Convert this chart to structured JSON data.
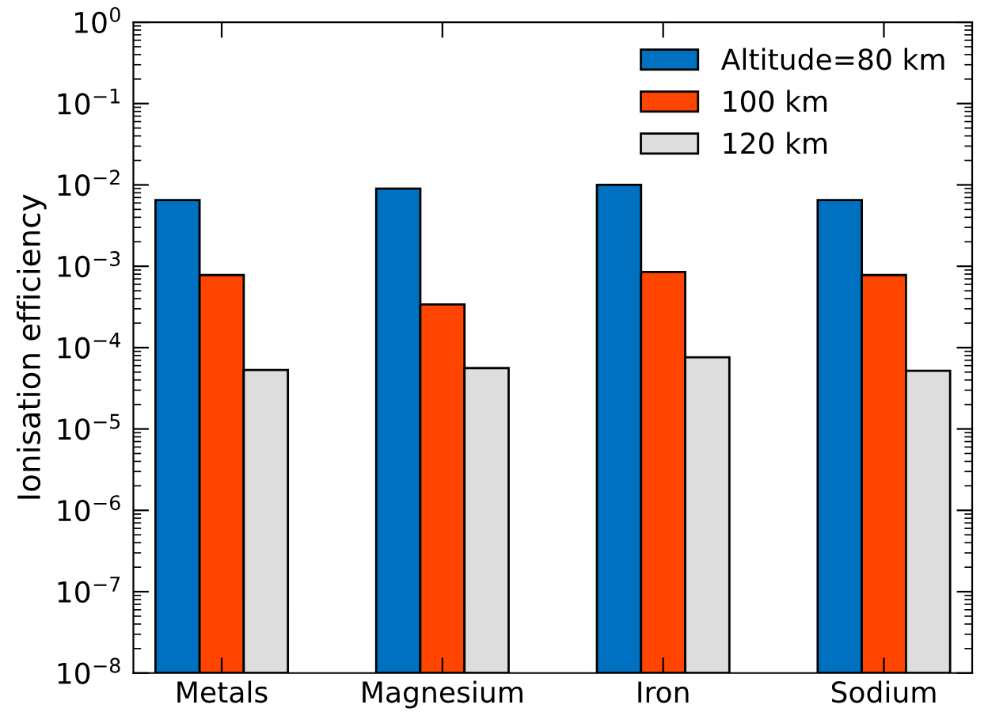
{
  "chart_data": {
    "type": "bar",
    "ylabel": "Ionisation efficiency",
    "categories": [
      "Metals",
      "Magnesium",
      "Iron",
      "Sodium"
    ],
    "series": [
      {
        "name": "Altitude=80 km",
        "color": "#0070c0",
        "values": [
          0.0065,
          0.009,
          0.01,
          0.0065
        ]
      },
      {
        "name": "100 km",
        "color": "#ff4500",
        "values": [
          0.00078,
          0.00034,
          0.00085,
          0.00078
        ]
      },
      {
        "name": "120 km",
        "color": "#dddddd",
        "values": [
          5.3e-05,
          5.6e-05,
          7.6e-05,
          5.2e-05
        ]
      }
    ],
    "log": "y",
    "ylim": [
      1e-08,
      1
    ],
    "yticks": [
      {
        "value": 1e-08,
        "label": "10$^{−8}$"
      },
      {
        "value": 1e-07,
        "label": "10$^{−7}$"
      },
      {
        "value": 1e-06,
        "label": "10$^{−6}$"
      },
      {
        "value": 1e-05,
        "label": "10$^{−5}$"
      },
      {
        "value": 0.0001,
        "label": "10$^{−4}$"
      },
      {
        "value": 0.001,
        "label": "10$^{−3}$"
      },
      {
        "value": 0.01,
        "label": "10$^{−2}$"
      },
      {
        "value": 0.1,
        "label": "10$^{−1}$"
      },
      {
        "value": 1,
        "label": "10$^{0}$"
      }
    ],
    "legend": "top right",
    "grid": false
  }
}
